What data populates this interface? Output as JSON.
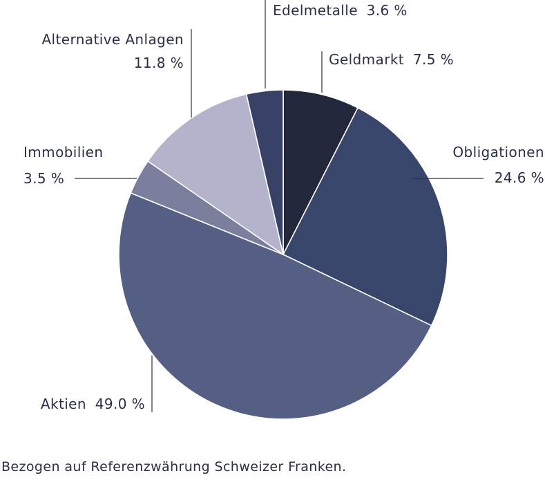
{
  "chart_data": {
    "type": "pie",
    "title": "",
    "slices": [
      {
        "label": "Geldmarkt",
        "value": 7.5,
        "display": "7.5 %",
        "color": "#23273b"
      },
      {
        "label": "Obligationen",
        "value": 24.6,
        "display": "24.6 %",
        "color": "#39466b"
      },
      {
        "label": "Aktien",
        "value": 49.0,
        "display": "49.0 %",
        "color": "#555f83"
      },
      {
        "label": "Immobilien",
        "value": 3.5,
        "display": "3.5 %",
        "color": "#7b7f9d"
      },
      {
        "label": "Alternative Anlagen",
        "value": 11.8,
        "display": "11.8 %",
        "color": "#b3b3cb"
      },
      {
        "label": "Edelmetalle",
        "value": 3.6,
        "display": "3.6 %",
        "color": "#374266"
      }
    ]
  },
  "footnote": "Bezogen auf Referenzwährung Schweizer Franken."
}
